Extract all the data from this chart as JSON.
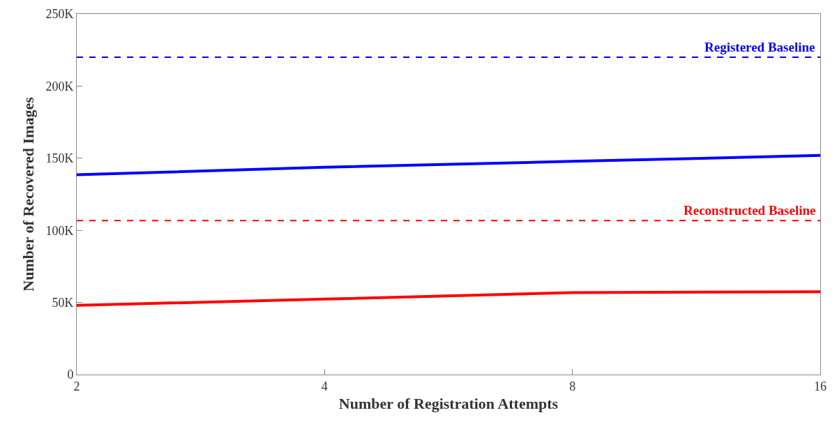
{
  "chart_data": {
    "type": "line",
    "xlabel": "Number of Registration Attempts",
    "ylabel": "Number of Recovered Images",
    "x": [
      2,
      4,
      8,
      16
    ],
    "log": "x",
    "xlim": [
      2,
      16
    ],
    "xticks": [
      2,
      4,
      8,
      16
    ],
    "ylim": [
      0,
      250000
    ],
    "yticks": [
      0,
      {
        "value": 50000,
        "label": "50K"
      },
      {
        "value": 100000,
        "label": "100K"
      },
      {
        "value": 150000,
        "label": "150K"
      },
      {
        "value": 200000,
        "label": "200K"
      },
      {
        "value": 250000,
        "label": "250K"
      }
    ],
    "series": [
      {
        "color": "#0000ff",
        "values": [
          138500,
          143700,
          147800,
          151900
        ]
      },
      {
        "color": "#ff0000",
        "values": [
          48000,
          52300,
          56800,
          57400
        ]
      }
    ],
    "ref_lines": [
      {
        "axis": "y",
        "value": 220000,
        "label": "Registered Baseline",
        "color": "#0000ff",
        "line_style": "dashed"
      },
      {
        "axis": "y",
        "value": 106800,
        "label": "Reconstructed Baseline",
        "color": "#ff0000",
        "line_style": "dashed"
      }
    ],
    "line_style": "solid",
    "marker": "none"
  }
}
